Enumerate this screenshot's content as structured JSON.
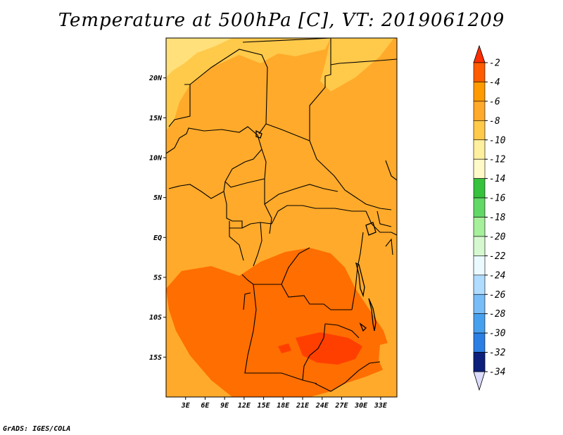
{
  "title": "Temperature at 500hPa [C], VT: 2019061209",
  "footer": "GrADS: IGES/COLA",
  "map": {
    "lon_range": [
      0,
      35.5
    ],
    "lat_range": [
      -20,
      25
    ],
    "xticks": [
      {
        "value": 3,
        "label": "3E"
      },
      {
        "value": 6,
        "label": "6E"
      },
      {
        "value": 9,
        "label": "9E"
      },
      {
        "value": 12,
        "label": "12E"
      },
      {
        "value": 15,
        "label": "15E"
      },
      {
        "value": 18,
        "label": "18E"
      },
      {
        "value": 21,
        "label": "21E"
      },
      {
        "value": 24,
        "label": "24E"
      },
      {
        "value": 27,
        "label": "27E"
      },
      {
        "value": 30,
        "label": "30E"
      },
      {
        "value": 33,
        "label": "33E"
      }
    ],
    "yticks": [
      {
        "value": 20,
        "label": "20N"
      },
      {
        "value": 15,
        "label": "15N"
      },
      {
        "value": 10,
        "label": "10N"
      },
      {
        "value": 5,
        "label": "5N"
      },
      {
        "value": 0,
        "label": "EQ"
      },
      {
        "value": -5,
        "label": "5S"
      },
      {
        "value": -10,
        "label": "10S"
      },
      {
        "value": -15,
        "label": "15S"
      }
    ]
  },
  "colorbar": {
    "levels": [
      {
        "label": "-2",
        "color": "#ff5b00"
      },
      {
        "label": "-4",
        "color": "#ff9a00"
      },
      {
        "label": "-6",
        "color": "#ffaa2a"
      },
      {
        "label": "-8",
        "color": "#ffc94a"
      },
      {
        "label": "-10",
        "color": "#fff0a0"
      },
      {
        "label": "-12",
        "color": "#fffac8"
      },
      {
        "label": "-14",
        "color": "#36c23c"
      },
      {
        "label": "-16",
        "color": "#62d867"
      },
      {
        "label": "-18",
        "color": "#a6ef9b"
      },
      {
        "label": "-20",
        "color": "#d6f8d0"
      },
      {
        "label": "-22",
        "color": "#eafaff"
      },
      {
        "label": "-24",
        "color": "#b0dcff"
      },
      {
        "label": "-26",
        "color": "#78bdf7"
      },
      {
        "label": "-28",
        "color": "#47a0ee"
      },
      {
        "label": "-30",
        "color": "#2b7ee3"
      },
      {
        "label": "-32",
        "color": "#1a5cd0"
      },
      {
        "label": "-34",
        "color": "#113cb0"
      }
    ],
    "top_color": "#ff2d00",
    "bottom_color": "#0c1f7a",
    "triangle_color": "#dcdcff"
  },
  "regions": [
    {
      "name": "-4 to -2 band",
      "color": "#ff6e00"
    },
    {
      "name": "warm core",
      "color": "#ff3f00"
    },
    {
      "name": "-10 to -8 band",
      "color": "#ffe07a"
    }
  ]
}
